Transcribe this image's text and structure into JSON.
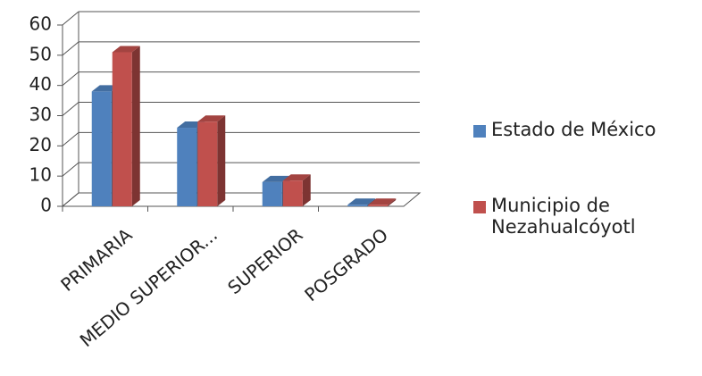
{
  "chart_data": {
    "type": "bar3d",
    "categories": [
      "PRIMARIA",
      "MEDIO SUPERIOR...",
      "SUPERIOR",
      "POSGRADO"
    ],
    "series": [
      {
        "name": "Estado de México",
        "color": "#4f81bd",
        "values": [
          38,
          26,
          8,
          0.5
        ]
      },
      {
        "name": "Municipio de Nezahualcóyotl",
        "color": "#c0504d",
        "values": [
          51,
          28,
          8.5,
          0.5
        ]
      }
    ],
    "ylim": [
      0,
      60
    ],
    "yticks": [
      0,
      10,
      20,
      30,
      40,
      50,
      60
    ],
    "grid": true,
    "legend": "right"
  }
}
